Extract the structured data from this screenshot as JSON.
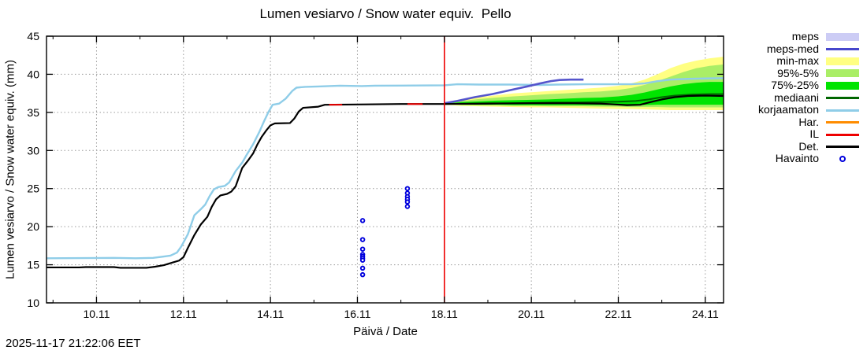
{
  "title": "Lumen vesiarvo / Snow water equiv.  Pello",
  "timestamp": "2025-11-17 21:22:06 EET",
  "axes": {
    "y_label": "Lumen vesiarvo / Snow water equiv. (mm)",
    "x_label": "Päivä / Date",
    "y_ticks": [
      10,
      15,
      20,
      25,
      30,
      35,
      40,
      45
    ],
    "x_ticks": [
      {
        "day": 10,
        "label": "10.11"
      },
      {
        "day": 12,
        "label": "12.11"
      },
      {
        "day": 14,
        "label": "14.11"
      },
      {
        "day": 16,
        "label": "16.11"
      },
      {
        "day": 18,
        "label": "18.11"
      },
      {
        "day": 20,
        "label": "20.11"
      },
      {
        "day": 22,
        "label": "22.11"
      },
      {
        "day": 24,
        "label": "24.11"
      }
    ],
    "x_minor_ticks": [
      9,
      11,
      13,
      15,
      17,
      19,
      21,
      23
    ],
    "grid": "dotted"
  },
  "colors": {
    "background": "#ffffff",
    "border": "#000000",
    "grid": "#9a9a9a",
    "now_line": "#ee0000"
  },
  "legend": [
    {
      "label": "meps",
      "swatch": "band",
      "color": "#ccccf5"
    },
    {
      "label": "meps-med",
      "swatch": "line",
      "color": "#4646cc"
    },
    {
      "label": "min-max",
      "swatch": "band",
      "color": "#ffff82"
    },
    {
      "label": "95%-5%",
      "swatch": "band",
      "color": "#aaee66"
    },
    {
      "label": "75%-25%",
      "swatch": "band",
      "color": "#00e400"
    },
    {
      "label": "mediaani",
      "swatch": "line",
      "color": "#006600"
    },
    {
      "label": "korjaamaton",
      "swatch": "line",
      "color": "#8fcde8"
    },
    {
      "label": "Har.",
      "swatch": "line",
      "color": "#ff8c00"
    },
    {
      "label": "IL",
      "swatch": "line",
      "color": "#ee0000"
    },
    {
      "label": "Det.",
      "swatch": "line",
      "color": "#000000"
    },
    {
      "label": "Havainto",
      "swatch": "point",
      "color": "#0000dd"
    }
  ],
  "chart_data": {
    "type": "line",
    "title": "Lumen vesiarvo / Snow water equiv.  Pello",
    "xlabel": "Päivä / Date",
    "ylabel": "Lumen vesiarvo / Snow water equiv. (mm)",
    "x_range": [
      8.85,
      24.42
    ],
    "y_range": [
      10,
      45
    ],
    "x_unit": "day of November",
    "now_line_day": 18.0,
    "bands": [
      {
        "name": "min-max",
        "color": "#ffff82",
        "x": [
          18.0,
          18.4,
          18.8,
          19.2,
          19.6,
          20.0,
          20.4,
          20.8,
          21.2,
          21.6,
          22.0,
          22.3,
          22.6,
          22.9,
          23.2,
          23.5,
          23.8,
          24.1,
          24.42
        ],
        "top": [
          36.2,
          36.7,
          37.0,
          37.25,
          37.5,
          37.65,
          37.8,
          37.95,
          38.1,
          38.25,
          38.5,
          38.8,
          39.3,
          40.0,
          40.8,
          41.4,
          41.8,
          42.1,
          42.3
        ],
        "bottom": [
          36.0,
          35.85,
          35.8,
          35.75,
          35.7,
          35.65,
          35.65,
          35.6,
          35.55,
          35.5,
          35.45,
          35.45,
          35.4,
          35.35,
          35.3,
          35.3,
          35.3,
          35.3,
          35.3
        ]
      },
      {
        "name": "95%-5%",
        "color": "#aaee66",
        "x": [
          18.0,
          18.4,
          18.8,
          19.2,
          19.6,
          20.0,
          20.4,
          20.8,
          21.2,
          21.6,
          22.0,
          22.3,
          22.6,
          22.9,
          23.2,
          23.5,
          23.8,
          24.1,
          24.42
        ],
        "top": [
          36.15,
          36.5,
          36.75,
          36.95,
          37.1,
          37.25,
          37.4,
          37.5,
          37.65,
          37.75,
          37.95,
          38.2,
          38.6,
          39.1,
          39.7,
          40.3,
          40.8,
          41.1,
          41.3
        ],
        "bottom": [
          36.05,
          35.95,
          35.9,
          35.9,
          35.85,
          35.85,
          35.8,
          35.8,
          35.8,
          35.75,
          35.75,
          35.7,
          35.7,
          35.7,
          35.65,
          35.65,
          35.65,
          35.65,
          35.65
        ]
      },
      {
        "name": "75%-25%",
        "color": "#00e400",
        "x": [
          18.0,
          18.4,
          18.8,
          19.2,
          19.6,
          20.0,
          20.4,
          20.8,
          21.2,
          21.6,
          22.0,
          22.3,
          22.6,
          22.9,
          23.2,
          23.5,
          23.8,
          24.1,
          24.42
        ],
        "top": [
          36.15,
          36.35,
          36.45,
          36.55,
          36.6,
          36.65,
          36.7,
          36.8,
          36.9,
          36.95,
          37.1,
          37.3,
          37.6,
          38.0,
          38.4,
          38.7,
          38.9,
          39.0,
          39.0
        ],
        "bottom": [
          36.05,
          36.0,
          36.0,
          36.0,
          35.95,
          35.95,
          35.95,
          35.95,
          35.95,
          35.95,
          35.95,
          35.95,
          35.95,
          36.0,
          36.0,
          36.0,
          36.0,
          36.0,
          36.0
        ]
      }
    ],
    "series": [
      {
        "name": "korjaamaton",
        "color": "#8fcde8",
        "width": 2.4,
        "points": [
          [
            8.85,
            15.85
          ],
          [
            10.4,
            15.9
          ],
          [
            10.9,
            15.85
          ],
          [
            11.3,
            15.9
          ],
          [
            11.5,
            16.05
          ],
          [
            11.7,
            16.2
          ],
          [
            11.85,
            16.6
          ],
          [
            11.95,
            17.4
          ],
          [
            12.1,
            19.0
          ],
          [
            12.25,
            21.5
          ],
          [
            12.4,
            22.3
          ],
          [
            12.5,
            22.9
          ],
          [
            12.6,
            24.0
          ],
          [
            12.7,
            24.9
          ],
          [
            12.8,
            25.2
          ],
          [
            12.95,
            25.35
          ],
          [
            13.05,
            25.8
          ],
          [
            13.2,
            27.3
          ],
          [
            13.35,
            28.4
          ],
          [
            13.45,
            29.4
          ],
          [
            13.6,
            30.8
          ],
          [
            13.75,
            32.5
          ],
          [
            13.85,
            33.8
          ],
          [
            13.95,
            35.0
          ],
          [
            14.05,
            36.0
          ],
          [
            14.2,
            36.15
          ],
          [
            14.35,
            36.8
          ],
          [
            14.5,
            37.8
          ],
          [
            14.6,
            38.25
          ],
          [
            14.8,
            38.35
          ],
          [
            15.1,
            38.4
          ],
          [
            15.6,
            38.5
          ],
          [
            16.1,
            38.45
          ],
          [
            16.4,
            38.5
          ],
          [
            18.0,
            38.55
          ],
          [
            18.3,
            38.7
          ],
          [
            18.8,
            38.65
          ],
          [
            19.5,
            38.65
          ],
          [
            20.2,
            38.6
          ],
          [
            20.6,
            38.65
          ],
          [
            21.3,
            38.7
          ],
          [
            22.3,
            38.7
          ],
          [
            22.6,
            38.8
          ],
          [
            22.9,
            39.1
          ],
          [
            23.2,
            39.3
          ],
          [
            23.6,
            39.4
          ],
          [
            24.0,
            39.45
          ],
          [
            24.42,
            39.5
          ]
        ]
      },
      {
        "name": "meps-med",
        "color": "#5555cc",
        "width": 2.6,
        "points": [
          [
            18.0,
            36.2
          ],
          [
            18.3,
            36.5
          ],
          [
            18.7,
            37.0
          ],
          [
            19.1,
            37.4
          ],
          [
            19.5,
            37.9
          ],
          [
            19.9,
            38.4
          ],
          [
            20.2,
            38.8
          ],
          [
            20.45,
            39.1
          ],
          [
            20.65,
            39.25
          ],
          [
            20.9,
            39.3
          ],
          [
            21.2,
            39.3
          ]
        ]
      },
      {
        "name": "mediaani",
        "color": "#006600",
        "width": 2,
        "points": [
          [
            18.0,
            36.1
          ],
          [
            18.5,
            36.15
          ],
          [
            19.0,
            36.2
          ],
          [
            19.5,
            36.2
          ],
          [
            20.0,
            36.25
          ],
          [
            20.5,
            36.3
          ],
          [
            21.0,
            36.3
          ],
          [
            21.5,
            36.35
          ],
          [
            22.0,
            36.4
          ],
          [
            22.4,
            36.5
          ],
          [
            22.7,
            36.7
          ],
          [
            23.0,
            37.0
          ],
          [
            23.3,
            37.2
          ],
          [
            23.7,
            37.35
          ],
          [
            24.1,
            37.4
          ],
          [
            24.42,
            37.4
          ]
        ]
      },
      {
        "name": "Det.",
        "color": "#000000",
        "width": 2.2,
        "points": [
          [
            8.85,
            14.65
          ],
          [
            9.6,
            14.65
          ],
          [
            9.75,
            14.7
          ],
          [
            10.4,
            14.7
          ],
          [
            10.55,
            14.6
          ],
          [
            11.15,
            14.6
          ],
          [
            11.35,
            14.75
          ],
          [
            11.55,
            14.95
          ],
          [
            11.75,
            15.3
          ],
          [
            11.9,
            15.55
          ],
          [
            12.0,
            16.0
          ],
          [
            12.1,
            17.2
          ],
          [
            12.25,
            18.9
          ],
          [
            12.4,
            20.3
          ],
          [
            12.55,
            21.3
          ],
          [
            12.65,
            22.6
          ],
          [
            12.75,
            23.6
          ],
          [
            12.85,
            24.1
          ],
          [
            13.0,
            24.3
          ],
          [
            13.1,
            24.6
          ],
          [
            13.2,
            25.3
          ],
          [
            13.35,
            27.7
          ],
          [
            13.5,
            28.8
          ],
          [
            13.6,
            29.6
          ],
          [
            13.7,
            30.8
          ],
          [
            13.8,
            31.8
          ],
          [
            13.9,
            32.6
          ],
          [
            14.0,
            33.3
          ],
          [
            14.1,
            33.55
          ],
          [
            14.45,
            33.6
          ],
          [
            14.55,
            34.2
          ],
          [
            14.65,
            35.1
          ],
          [
            14.75,
            35.6
          ],
          [
            15.1,
            35.75
          ],
          [
            15.25,
            36.0
          ],
          [
            16.2,
            36.05
          ],
          [
            17.0,
            36.1
          ],
          [
            18.0,
            36.1
          ],
          [
            19.0,
            36.15
          ],
          [
            20.0,
            36.2
          ],
          [
            21.0,
            36.2
          ],
          [
            21.6,
            36.15
          ],
          [
            21.9,
            36.05
          ],
          [
            22.2,
            35.95
          ],
          [
            22.5,
            36.0
          ],
          [
            22.7,
            36.3
          ],
          [
            23.0,
            36.7
          ],
          [
            23.3,
            37.0
          ],
          [
            23.6,
            37.15
          ],
          [
            24.0,
            37.2
          ],
          [
            24.42,
            37.15
          ]
        ]
      },
      {
        "name": "IL",
        "color": "#ee0000",
        "width": 2,
        "segments": [
          [
            [
              15.35,
              36.0
            ],
            [
              15.65,
              36.0
            ]
          ],
          [
            [
              17.15,
              36.1
            ],
            [
              17.5,
              36.1
            ]
          ]
        ]
      }
    ],
    "observations": {
      "name": "Havainto",
      "color": "#0000dd",
      "groups": [
        {
          "day": 16.12,
          "values": [
            20.8,
            18.3,
            17.05,
            16.35,
            16.1,
            15.85,
            15.6,
            14.55,
            13.7
          ]
        },
        {
          "day": 17.15,
          "values": [
            25.0,
            24.4,
            23.95,
            23.6,
            23.25,
            22.65
          ]
        }
      ]
    }
  }
}
